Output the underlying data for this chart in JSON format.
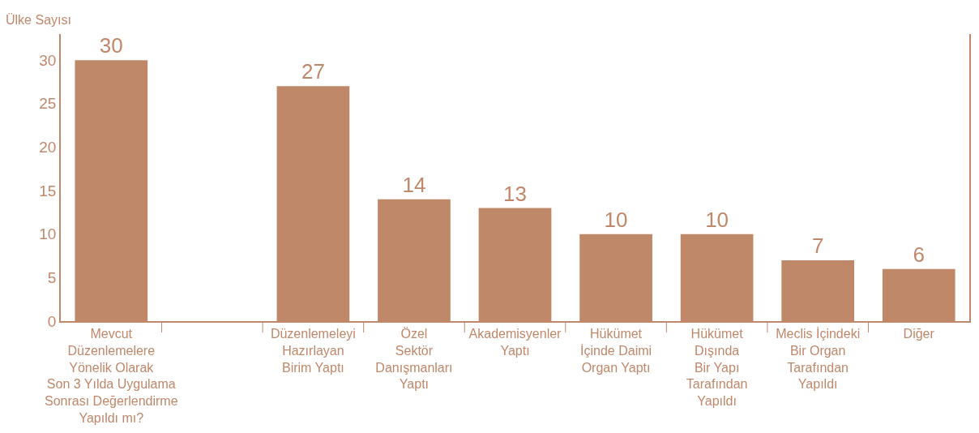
{
  "chart_data": {
    "type": "bar",
    "ylabel": "Ülke Sayısı",
    "categories": [
      "Mevcut\nDüzenlemelere\nYönelik Olarak\nSon 3 Yılda Uygulama\nSonrası Değerlendirme\nYapıldı mı?",
      null,
      "Düzenlemeleyi\nHazırlayan\nBirim Yaptı",
      "Özel\nSektör\nDanışmanları\nYaptı",
      "Akademisyenler\nYaptı",
      "Hükümet\nİçinde Daimi\nOrgan Yaptı",
      "Hükümet\nDışında\nBir Yapı\nTarafından\nYapıldı",
      "Meclis İçindeki\nBir Organ\nTarafından\nYapıldı",
      "Diğer"
    ],
    "values": [
      30,
      null,
      27,
      14,
      13,
      10,
      10,
      7,
      6
    ],
    "color": "#bf8868",
    "ylim": [
      0,
      33
    ],
    "yticks": [
      0,
      5,
      10,
      15,
      20,
      25,
      30
    ],
    "data_labels": true
  }
}
